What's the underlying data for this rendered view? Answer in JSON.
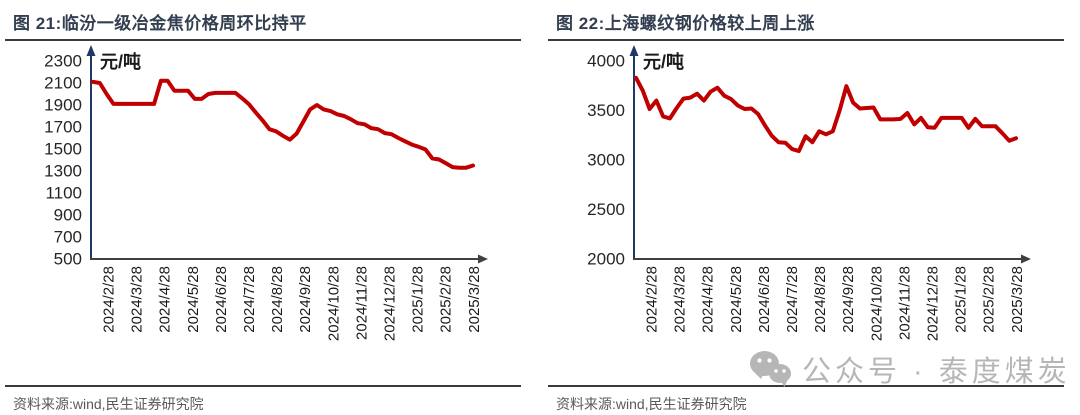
{
  "watermark": {
    "icon": "wechat-icon",
    "text": "公众号 · 泰度煤炭",
    "color": "#b3b3b3"
  },
  "figures": [
    {
      "title": "图 21:临汾一级冶金焦价格周环比持平",
      "source": "资料来源:wind,民生证券研究院",
      "chart_data": {
        "type": "line",
        "title": "临汾一级冶金焦价格周环比持平",
        "unit_label": "元/吨",
        "ylabel": "元/吨",
        "xlabel": "",
        "ylim": [
          500,
          2300
        ],
        "yticks": [
          2300,
          2100,
          1900,
          1700,
          1500,
          1300,
          1100,
          900,
          700,
          500
        ],
        "grid": false,
        "legend": "none",
        "x_tick_labels": [
          "2024/2/28",
          "2024/3/28",
          "2024/4/28",
          "2024/5/28",
          "2024/6/28",
          "2024/7/28",
          "2024/8/28",
          "2024/9/28",
          "2024/10/28",
          "2024/11/28",
          "2024/12/28",
          "2025/1/28",
          "2025/2/28",
          "2025/3/28"
        ],
        "y_axis_color": "#203864",
        "x_axis_color": "#404040",
        "series": [
          {
            "name": "临汾一级冶金焦价格",
            "color": "#C00000",
            "values": [
              2110,
              2100,
              2000,
              1910,
              1910,
              1910,
              1910,
              1910,
              1910,
              1910,
              2120,
              2120,
              2030,
              2030,
              2030,
              1955,
              1955,
              2000,
              2010,
              2010,
              2010,
              2010,
              1960,
              1905,
              1830,
              1760,
              1680,
              1660,
              1620,
              1585,
              1640,
              1750,
              1860,
              1900,
              1860,
              1845,
              1815,
              1800,
              1770,
              1735,
              1725,
              1690,
              1680,
              1645,
              1635,
              1600,
              1570,
              1540,
              1520,
              1495,
              1415,
              1405,
              1370,
              1335,
              1330,
              1330,
              1350
            ]
          }
        ]
      }
    },
    {
      "title": "图 22:上海螺纹钢价格较上周上涨",
      "source": "资料来源:wind,民生证券研究院",
      "chart_data": {
        "type": "line",
        "title": "上海螺纹钢价格较上周上涨",
        "unit_label": "元/吨",
        "ylabel": "元/吨",
        "xlabel": "",
        "ylim": [
          2000,
          4000
        ],
        "yticks": [
          4000,
          3500,
          3000,
          2500,
          2000
        ],
        "grid": false,
        "legend": "none",
        "x_tick_labels": [
          "2024/2/28",
          "2024/3/28",
          "2024/4/28",
          "2024/5/28",
          "2024/6/28",
          "2024/7/28",
          "2024/8/28",
          "2024/9/28",
          "2024/10/28",
          "2024/11/28",
          "2024/12/28",
          "2025/1/28",
          "2025/2/28",
          "2025/3/28"
        ],
        "y_axis_color": "#203864",
        "x_axis_color": "#404040",
        "series": [
          {
            "name": "上海螺纹钢价格",
            "color": "#C00000",
            "values": [
              3830,
              3700,
              3515,
              3600,
              3440,
              3420,
              3525,
              3620,
              3630,
              3670,
              3600,
              3690,
              3730,
              3650,
              3615,
              3550,
              3515,
              3520,
              3465,
              3350,
              3245,
              3180,
              3175,
              3110,
              3090,
              3240,
              3180,
              3290,
              3260,
              3290,
              3500,
              3745,
              3580,
              3520,
              3525,
              3530,
              3410,
              3410,
              3410,
              3415,
              3475,
              3360,
              3425,
              3330,
              3325,
              3425,
              3425,
              3425,
              3425,
              3325,
              3415,
              3340,
              3340,
              3340,
              3270,
              3195,
              3220
            ]
          }
        ]
      }
    }
  ]
}
